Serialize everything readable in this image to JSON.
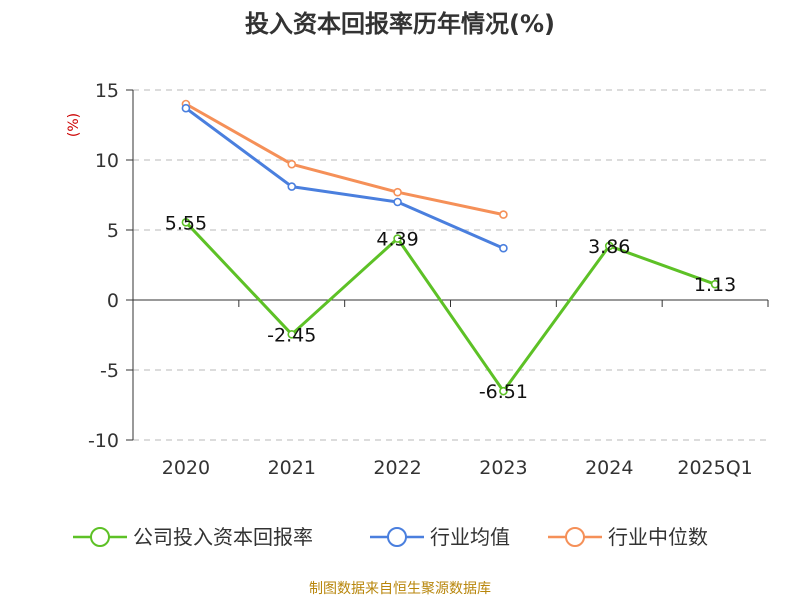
{
  "chart_data": {
    "type": "line",
    "title": "投入资本回报率历年情况(%)",
    "ylabel": "(%)",
    "categories": [
      "2020",
      "2021",
      "2022",
      "2023",
      "2024",
      "2025Q1"
    ],
    "ylim": [
      -10,
      15
    ],
    "yticks": [
      15,
      10,
      5,
      0,
      -5,
      -10
    ],
    "grid": true,
    "legend_position": "bottom",
    "series": [
      {
        "name": "公司投入资本回报率",
        "color": "#5dc126",
        "values": [
          5.55,
          -2.45,
          4.39,
          -6.51,
          3.86,
          1.13
        ],
        "labels": [
          "5.55",
          "-2.45",
          "4.39",
          "-6.51",
          "3.86",
          "1.13"
        ]
      },
      {
        "name": "行业均值",
        "color": "#4a7fde",
        "values": [
          13.7,
          8.1,
          7.0,
          3.7,
          null,
          null
        ]
      },
      {
        "name": "行业中位数",
        "color": "#f59058",
        "values": [
          14.0,
          9.7,
          7.7,
          6.1,
          null,
          null
        ]
      }
    ]
  },
  "source": "制图数据来自恒生聚源数据库"
}
